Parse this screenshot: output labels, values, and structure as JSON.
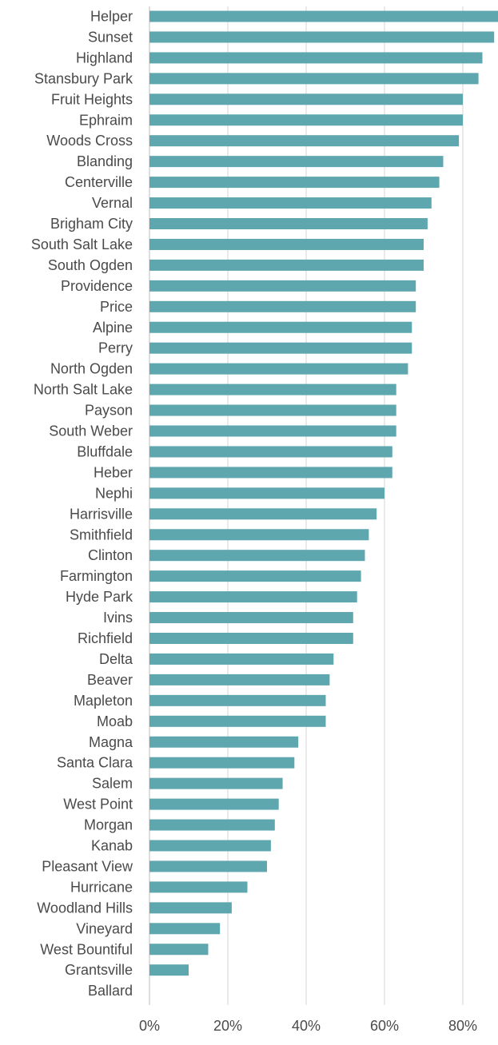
{
  "chart_data": {
    "type": "bar",
    "orientation": "horizontal",
    "title": "",
    "xlabel": "",
    "ylabel": "",
    "xlim": [
      0,
      0.9
    ],
    "x_ticks": [
      0,
      0.2,
      0.4,
      0.6,
      0.8
    ],
    "x_tick_labels": [
      "0%",
      "20%",
      "40%",
      "60%",
      "80%"
    ],
    "grid": "vertical",
    "legend": "none",
    "bar_color": "#5fa7ae",
    "categories": [
      "Helper",
      "Sunset",
      "Highland",
      "Stansbury Park",
      "Fruit Heights",
      "Ephraim",
      "Woods Cross",
      "Blanding",
      "Centerville",
      "Vernal",
      "Brigham City",
      "South Salt Lake",
      "South Ogden",
      "Providence",
      "Price",
      "Alpine",
      "Perry",
      "North Ogden",
      "North Salt Lake",
      "Payson",
      "South Weber",
      "Bluffdale",
      "Heber",
      "Nephi",
      "Harrisville",
      "Smithfield",
      "Clinton",
      "Farmington",
      "Hyde Park",
      "Ivins",
      "Richfield",
      "Delta",
      "Beaver",
      "Mapleton",
      "Moab",
      "Magna",
      "Santa Clara",
      "Salem",
      "West Point",
      "Morgan",
      "Kanab",
      "Pleasant View",
      "Hurricane",
      "Woodland Hills",
      "Vineyard",
      "West Bountiful",
      "Grantsville",
      "Ballard"
    ],
    "values": [
      0.89,
      0.88,
      0.85,
      0.84,
      0.8,
      0.8,
      0.79,
      0.75,
      0.74,
      0.72,
      0.71,
      0.7,
      0.7,
      0.68,
      0.68,
      0.67,
      0.67,
      0.66,
      0.63,
      0.63,
      0.63,
      0.62,
      0.62,
      0.6,
      0.58,
      0.56,
      0.55,
      0.54,
      0.53,
      0.52,
      0.52,
      0.47,
      0.46,
      0.45,
      0.45,
      0.38,
      0.37,
      0.34,
      0.33,
      0.32,
      0.31,
      0.3,
      0.25,
      0.21,
      0.18,
      0.15,
      0.1,
      0.0
    ]
  }
}
